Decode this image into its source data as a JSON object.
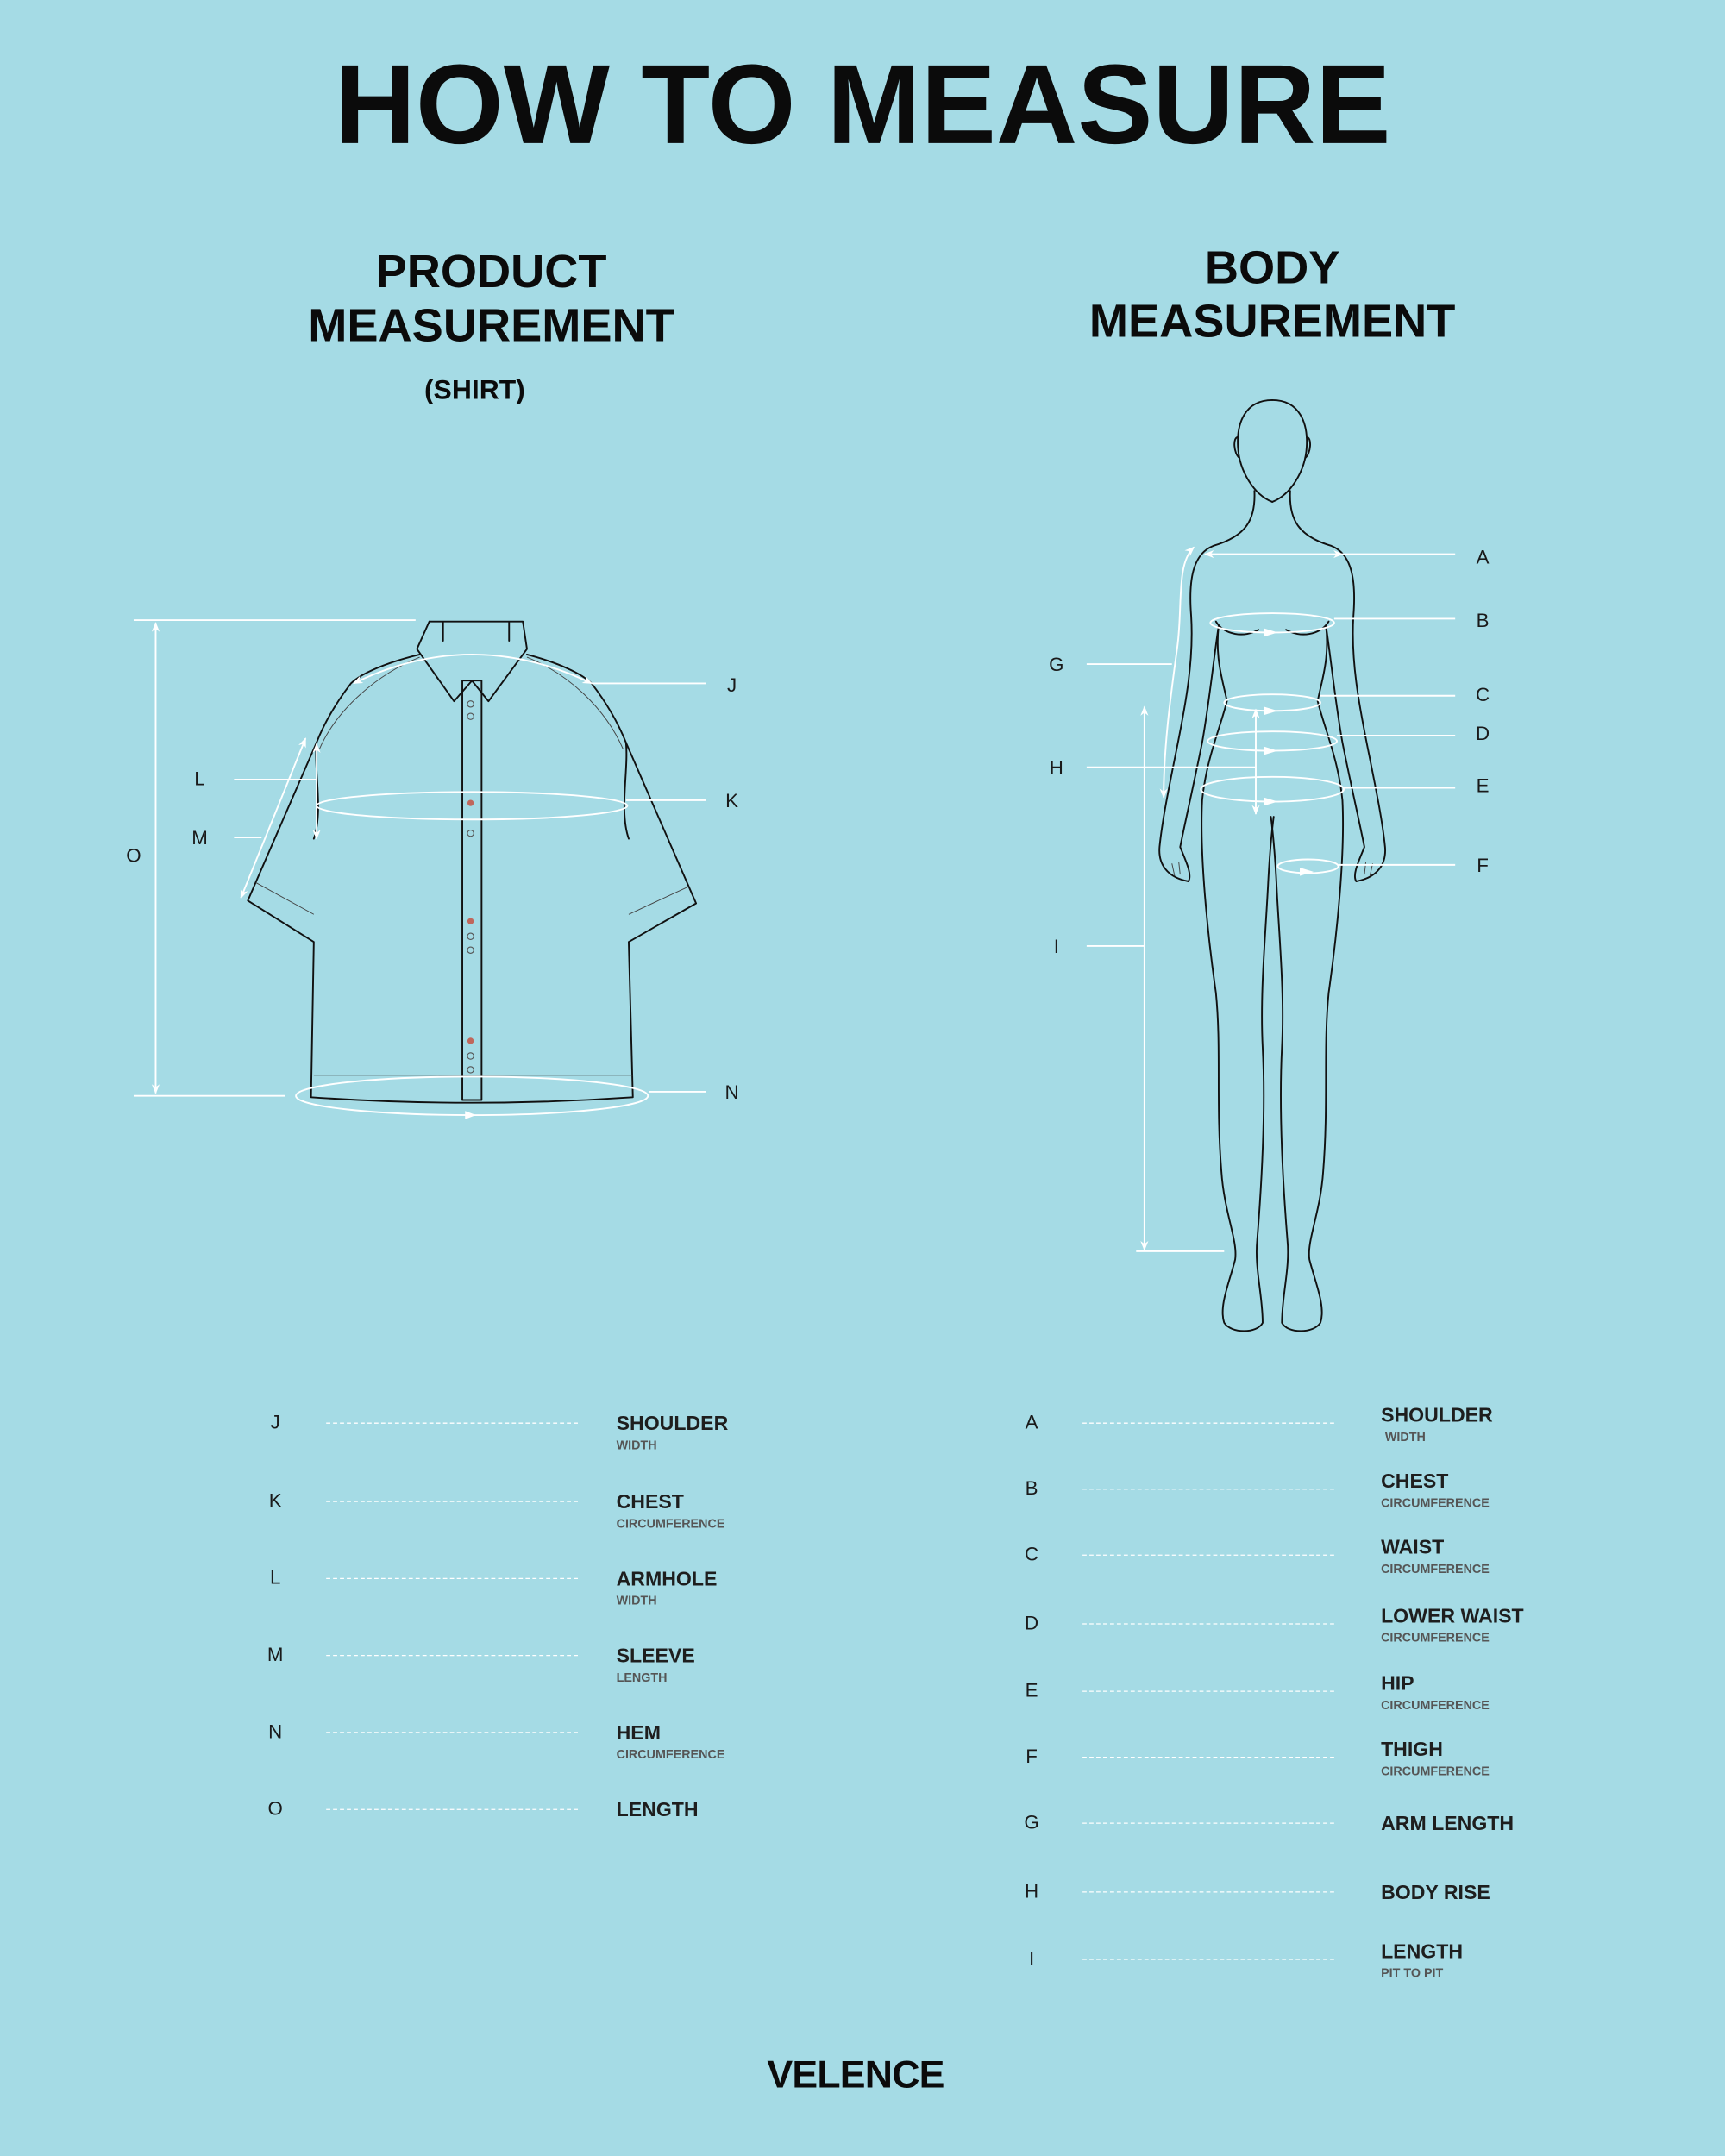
{
  "title": "HOW TO MEASURE",
  "product": {
    "heading_line1": "PRODUCT",
    "heading_line2": "MEASUREMENT",
    "subheading": "(SHIRT)",
    "diagram_labels": {
      "J": "J",
      "K": "K",
      "L": "L",
      "M": "M",
      "N": "N",
      "O": "O"
    },
    "legend": [
      {
        "letter": "J",
        "name": "SHOULDER",
        "sub": "WIDTH"
      },
      {
        "letter": "K",
        "name": "CHEST",
        "sub": "CIRCUMFERENCE"
      },
      {
        "letter": "L",
        "name": "ARMHOLE",
        "sub": "WIDTH"
      },
      {
        "letter": "M",
        "name": "SLEEVE",
        "sub": "LENGTH"
      },
      {
        "letter": "N",
        "name": "HEM",
        "sub": "CIRCUMFERENCE"
      },
      {
        "letter": "O",
        "name": "LENGTH",
        "sub": ""
      }
    ]
  },
  "body": {
    "heading_line1": "BODY",
    "heading_line2": "MEASUREMENT",
    "diagram_labels": {
      "A": "A",
      "B": "B",
      "C": "C",
      "D": "D",
      "E": "E",
      "F": "F",
      "G": "G",
      "H": "H",
      "I": "I"
    },
    "legend": [
      {
        "letter": "A",
        "name": "SHOULDER",
        "sub": "WIDTH"
      },
      {
        "letter": "B",
        "name": "CHEST",
        "sub": "CIRCUMFERENCE"
      },
      {
        "letter": "C",
        "name": "WAIST",
        "sub": "CIRCUMFERENCE"
      },
      {
        "letter": "D",
        "name": "LOWER WAIST",
        "sub": "CIRCUMFERENCE"
      },
      {
        "letter": "E",
        "name": "HIP",
        "sub": "CIRCUMFERENCE"
      },
      {
        "letter": "F",
        "name": "THIGH",
        "sub": "CIRCUMFERENCE"
      },
      {
        "letter": "G",
        "name": "ARM LENGTH",
        "sub": ""
      },
      {
        "letter": "H",
        "name": "BODY RISE",
        "sub": ""
      },
      {
        "letter": "I",
        "name": "LENGTH",
        "sub": "PIT TO PIT"
      }
    ]
  },
  "brand": "VELENCE",
  "colors": {
    "background": "#a5dbe5",
    "text": "#0b0b0b",
    "measure_lines": "#ffffff",
    "button_accent": "#c0675c"
  }
}
